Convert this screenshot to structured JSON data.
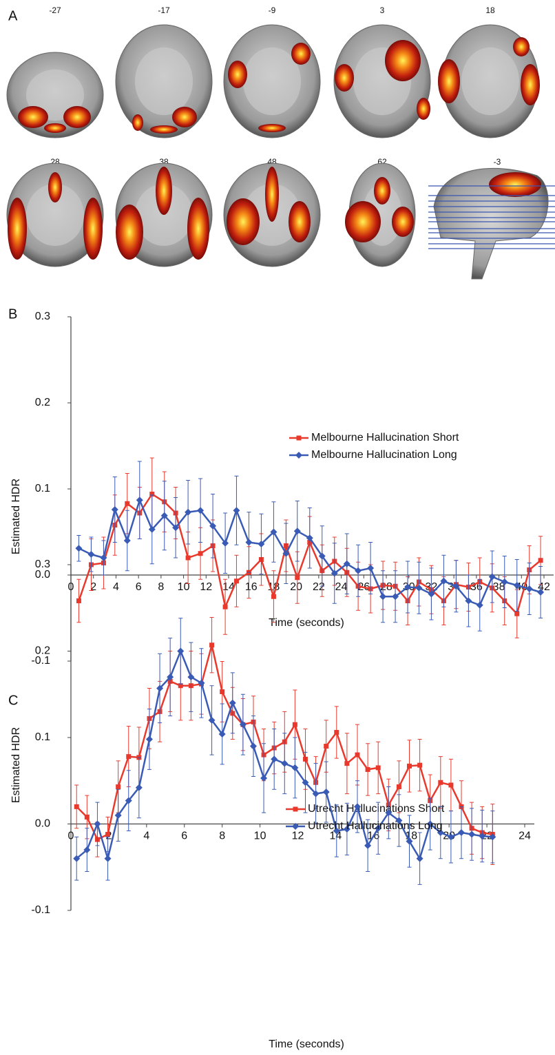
{
  "panel_labels": [
    "A",
    "B",
    "C"
  ],
  "brain_slices": {
    "labels": [
      "-27",
      "-17",
      "-9",
      "3",
      "18",
      "28",
      "38",
      "48",
      "62",
      "-3"
    ]
  },
  "chart_data": [
    {
      "type": "line",
      "x_label": "Time (seconds)",
      "y_label": "Estimated HDR",
      "x": [
        0.7,
        1.8,
        2.9,
        3.9,
        5.0,
        6.1,
        7.2,
        8.3,
        9.3,
        10.4,
        11.5,
        12.6,
        13.7,
        14.7,
        15.8,
        16.9,
        18.0,
        19.1,
        20.1,
        21.2,
        22.3,
        23.4,
        24.5,
        25.5,
        26.6,
        27.7,
        28.8,
        29.9,
        30.9,
        32.0,
        33.1,
        34.2,
        35.3,
        36.3,
        37.4,
        38.5,
        39.6,
        40.7,
        41.7
      ],
      "series": [
        {
          "name": "Melbourne Hallucination Short",
          "color": "#e8392c",
          "marker": "square",
          "values": [
            -0.03,
            0.012,
            0.014,
            0.058,
            0.083,
            0.072,
            0.094,
            0.085,
            0.072,
            0.02,
            0.025,
            0.034,
            -0.037,
            -0.007,
            0.003,
            0.018,
            -0.025,
            0.034,
            -0.003,
            0.038,
            0.005,
            0.016,
            0.003,
            -0.013,
            -0.016,
            -0.012,
            -0.013,
            -0.03,
            -0.008,
            -0.017,
            -0.03,
            -0.011,
            -0.014,
            -0.008,
            -0.015,
            -0.03,
            -0.045,
            0.006,
            0.017
          ],
          "errors": [
            0.025,
            0.03,
            0.03,
            0.035,
            0.035,
            0.03,
            0.042,
            0.035,
            0.03,
            0.03,
            0.03,
            0.03,
            0.032,
            0.03,
            0.03,
            0.03,
            0.03,
            0.03,
            0.03,
            0.03,
            0.03,
            0.028,
            0.028,
            0.028,
            0.028,
            0.028,
            0.028,
            0.028,
            0.028,
            0.028,
            0.028,
            0.028,
            0.028,
            0.028,
            0.028,
            0.028,
            0.028,
            0.028,
            0.028
          ]
        },
        {
          "name": "Melbourne Hallucination Long",
          "color": "#3a5bb5",
          "marker": "diamond",
          "values": [
            0.031,
            0.024,
            0.02,
            0.076,
            0.04,
            0.087,
            0.053,
            0.069,
            0.055,
            0.073,
            0.075,
            0.057,
            0.037,
            0.075,
            0.038,
            0.036,
            0.05,
            0.025,
            0.051,
            0.043,
            0.022,
            0.002,
            0.013,
            0.005,
            0.008,
            -0.025,
            -0.025,
            -0.014,
            -0.015,
            -0.022,
            -0.007,
            -0.013,
            -0.03,
            -0.035,
            -0.002,
            -0.008,
            -0.012,
            -0.016,
            -0.02
          ],
          "errors": [
            0.015,
            0.02,
            0.02,
            0.038,
            0.035,
            0.045,
            0.04,
            0.04,
            0.035,
            0.037,
            0.037,
            0.037,
            0.035,
            0.04,
            0.035,
            0.035,
            0.035,
            0.035,
            0.035,
            0.035,
            0.035,
            0.035,
            0.035,
            0.03,
            0.03,
            0.03,
            0.03,
            0.03,
            0.03,
            0.03,
            0.03,
            0.03,
            0.03,
            0.03,
            0.03,
            0.03,
            0.03,
            0.03,
            0.03
          ]
        }
      ],
      "xlim": [
        0,
        42
      ],
      "ylim": [
        -0.1,
        0.3
      ],
      "xticks": [
        0,
        2,
        4,
        6,
        8,
        10,
        12,
        14,
        16,
        18,
        20,
        22,
        24,
        26,
        28,
        30,
        32,
        34,
        36,
        38,
        40,
        42
      ],
      "yticks": [
        -0.1,
        {
          "value": 0,
          "label": "0.0"
        },
        0.1,
        0.2,
        0.3
      ]
    },
    {
      "type": "line",
      "x_label": "Time (seconds)",
      "y_label": "Estimated HDR",
      "x": [
        0.3,
        0.85,
        1.4,
        1.95,
        2.5,
        3.05,
        3.6,
        4.15,
        4.7,
        5.25,
        5.8,
        6.35,
        6.9,
        7.45,
        8.0,
        8.55,
        9.1,
        9.65,
        10.2,
        10.75,
        11.3,
        11.85,
        12.4,
        12.95,
        13.5,
        14.05,
        14.6,
        15.15,
        15.7,
        16.25,
        16.8,
        17.35,
        17.9,
        18.45,
        19.0,
        19.55,
        20.1,
        20.65,
        21.2,
        21.75,
        22.3
      ],
      "series": [
        {
          "name": "Utrecht Hallucinations Short",
          "color": "#e8392c",
          "marker": "square",
          "values": [
            0.02,
            0.008,
            -0.018,
            -0.012,
            0.043,
            0.078,
            0.077,
            0.122,
            0.13,
            0.165,
            0.16,
            0.16,
            0.162,
            0.207,
            0.153,
            0.128,
            0.115,
            0.118,
            0.08,
            0.088,
            0.095,
            0.115,
            0.075,
            0.048,
            0.09,
            0.106,
            0.07,
            0.08,
            0.063,
            0.065,
            0.022,
            0.043,
            0.067,
            0.068,
            0.027,
            0.048,
            0.045,
            0.02,
            -0.005,
            -0.01,
            -0.012
          ],
          "errors": [
            0.025,
            0.025,
            0.02,
            0.02,
            0.03,
            0.035,
            0.035,
            0.035,
            0.035,
            0.035,
            0.04,
            0.04,
            0.035,
            0.032,
            0.035,
            0.03,
            0.03,
            0.03,
            0.03,
            0.03,
            0.035,
            0.04,
            0.035,
            0.03,
            0.03,
            0.03,
            0.035,
            0.035,
            0.03,
            0.03,
            0.03,
            0.03,
            0.03,
            0.03,
            0.03,
            0.03,
            0.03,
            0.03,
            0.03,
            0.03,
            0.035
          ]
        },
        {
          "name": "Utrecht Hallucinations Long",
          "color": "#3a5bb5",
          "marker": "diamond",
          "values": [
            -0.04,
            -0.03,
            0.0,
            -0.04,
            0.01,
            0.027,
            0.042,
            0.098,
            0.157,
            0.17,
            0.2,
            0.17,
            0.163,
            0.12,
            0.104,
            0.14,
            0.115,
            0.09,
            0.053,
            0.075,
            0.07,
            0.065,
            0.048,
            0.035,
            0.037,
            -0.008,
            -0.006,
            0.02,
            -0.025,
            -0.005,
            0.013,
            0.004,
            -0.02,
            -0.04,
            0.0,
            -0.01,
            -0.015,
            -0.01,
            -0.012,
            -0.014,
            -0.015
          ],
          "errors": [
            0.025,
            0.025,
            0.025,
            0.025,
            0.03,
            0.035,
            0.035,
            0.035,
            0.04,
            0.045,
            0.038,
            0.04,
            0.04,
            0.04,
            0.035,
            0.035,
            0.035,
            0.035,
            0.04,
            0.035,
            0.035,
            0.035,
            0.035,
            0.035,
            0.035,
            0.03,
            0.03,
            0.03,
            0.03,
            0.03,
            0.03,
            0.03,
            0.03,
            0.03,
            0.03,
            0.03,
            0.03,
            0.03,
            0.03,
            0.03,
            0.03
          ]
        }
      ],
      "xlim": [
        0,
        24
      ],
      "ylim": [
        -0.1,
        0.3
      ],
      "xticks": [
        0,
        2,
        4,
        6,
        8,
        10,
        12,
        14,
        16,
        18,
        20,
        22,
        24
      ],
      "yticks": [
        -0.1,
        {
          "value": 0,
          "label": "0.0"
        },
        0.1,
        0.2,
        0.3
      ]
    }
  ]
}
